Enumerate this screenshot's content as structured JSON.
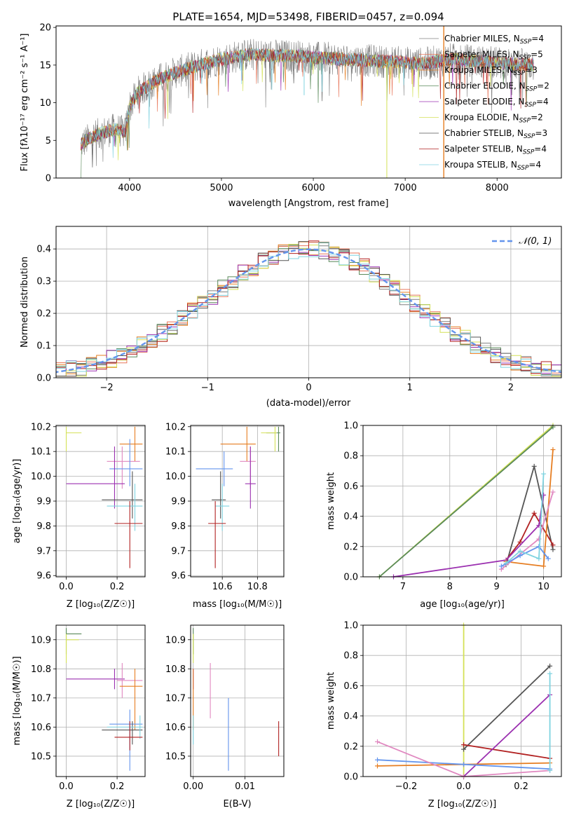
{
  "colors": {
    "chabrier_miles": "#808080",
    "salpeter_miles": "#e8765a",
    "kroupa_miles": "#e67e22",
    "chabrier_elodie": "#5a8a5a",
    "salpeter_elodie": "#9b30b0",
    "kroupa_elodie": "#d4e157",
    "chabrier_stelib": "#555555",
    "salpeter_stelib": "#b22222",
    "kroupa_stelib": "#7fd3e0",
    "normal_curve": "#6495ed",
    "pink": "#e088c0"
  },
  "chart_data": [
    {
      "id": "spectrum",
      "type": "line",
      "title": "PLATE=1654, MJD=53498, FIBERID=0457, z=0.094",
      "xlabel": "wavelength [Angstrom, rest frame]",
      "ylabel": "Flux [fλ10⁻¹⁷ erg cm⁻² s⁻¹ A⁻¹]",
      "xlim": [
        3200,
        8700
      ],
      "ylim": [
        0,
        20.2
      ],
      "xticks": [
        "4000",
        "5000",
        "6000",
        "7000",
        "8000"
      ],
      "yticks": [
        "0",
        "5",
        "10",
        "15",
        "20"
      ],
      "legend_position": "right",
      "series": [
        {
          "name": "Chabrier MILES, N",
          "ssp": "4",
          "color_key": "chabrier_miles"
        },
        {
          "name": "Salpeter MILES, N",
          "ssp": "5",
          "color_key": "salpeter_miles"
        },
        {
          "name": "Kroupa MILES, N",
          "ssp": "3",
          "color_key": "kroupa_miles"
        },
        {
          "name": "Chabrier ELODIE, N",
          "ssp": "2",
          "color_key": "chabrier_elodie"
        },
        {
          "name": "Salpeter ELODIE, N",
          "ssp": "4",
          "color_key": "salpeter_elodie"
        },
        {
          "name": "Kroupa ELODIE, N",
          "ssp": "2",
          "color_key": "kroupa_elodie"
        },
        {
          "name": "Chabrier STELIB, N",
          "ssp": "3",
          "color_key": "chabrier_stelib"
        },
        {
          "name": "Salpeter STELIB, N",
          "ssp": "4",
          "color_key": "salpeter_stelib"
        },
        {
          "name": "Kroupa STELIB, N",
          "ssp": "4",
          "color_key": "kroupa_stelib"
        }
      ],
      "continuum_x": [
        3470,
        3600,
        3700,
        3850,
        3950,
        4000,
        4100,
        4300,
        4500,
        4700,
        4900,
        5100,
        5300,
        5500,
        5800,
        6000,
        6300,
        6600,
        6900,
        7200,
        7500,
        7800,
        8100,
        8400
      ],
      "continuum_y": [
        4.5,
        5.5,
        6.0,
        6.5,
        6.0,
        9.5,
        11.5,
        13.0,
        14.0,
        14.8,
        15.5,
        16.0,
        16.4,
        16.3,
        16.2,
        16.0,
        15.8,
        15.6,
        15.4,
        15.2,
        15.8,
        15.5,
        15.2,
        15.0
      ]
    },
    {
      "id": "histogram",
      "type": "bar",
      "xlabel": "(data-model)/error",
      "ylabel": "Normed distribution",
      "xlim": [
        -2.5,
        2.5
      ],
      "ylim": [
        0,
        0.47
      ],
      "xticks": [
        "−2",
        "−1",
        "0",
        "1",
        "2"
      ],
      "yticks": [
        "0.0",
        "0.1",
        "0.2",
        "0.3",
        "0.4"
      ],
      "legend": "𝒩(0, 1)",
      "bin_width": 0.1,
      "bin_start": -2.5
    },
    {
      "id": "age_vs_Z",
      "type": "scatter",
      "xlabel": "Z [log₁₀(Z/Z☉)]",
      "ylabel": "age  [log₁₀(age/yr)]",
      "xlim": [
        -0.04,
        0.31
      ],
      "ylim": [
        9.595,
        10.205
      ],
      "xticks": [
        "0.0",
        "0.2"
      ],
      "yticks": [
        "9.6",
        "9.7",
        "9.8",
        "9.9",
        "10.0",
        "10.1",
        "10.2"
      ],
      "points": [
        {
          "c": "kroupa_elodie",
          "x": 0.0,
          "y": 10.175,
          "xe": [
            0.0,
            0.06
          ],
          "ye": [
            10.1,
            10.2
          ]
        },
        {
          "c": "kroupa_miles",
          "x": 0.27,
          "y": 10.13,
          "xe": [
            0.21,
            0.3
          ],
          "ye": [
            10.06,
            10.2
          ]
        },
        {
          "c": "pink",
          "x": 0.22,
          "y": 10.06,
          "xe": [
            0.16,
            0.29
          ],
          "ye": [
            9.95,
            10.12
          ]
        },
        {
          "c": "normal_curve",
          "x": 0.25,
          "y": 10.03,
          "xe": [
            0.17,
            0.3
          ],
          "ye": [
            9.96,
            10.15
          ]
        },
        {
          "c": "salpeter_elodie",
          "x": 0.19,
          "y": 9.97,
          "xe": [
            0.0,
            0.23
          ],
          "ye": [
            9.87,
            10.12
          ]
        },
        {
          "c": "chabrier_stelib",
          "x": 0.26,
          "y": 9.905,
          "xe": [
            0.14,
            0.3
          ],
          "ye": [
            9.83,
            10.02
          ]
        },
        {
          "c": "kroupa_stelib",
          "x": 0.27,
          "y": 9.88,
          "xe": [
            0.16,
            0.3
          ],
          "ye": [
            9.78,
            9.97
          ]
        },
        {
          "c": "salpeter_stelib",
          "x": 0.25,
          "y": 9.81,
          "xe": [
            0.19,
            0.3
          ],
          "ye": [
            9.63,
            9.9
          ]
        }
      ]
    },
    {
      "id": "age_vs_mass",
      "type": "scatter",
      "xlabel": "mass [log₁₀(M/M☉)]",
      "ylabel": "",
      "xlim": [
        10.42,
        10.95
      ],
      "ylim": [
        9.595,
        10.205
      ],
      "xticks": [
        "10.6",
        "10.8"
      ],
      "yticks": [
        "9.6",
        "9.7",
        "9.8",
        "9.9",
        "10.0",
        "10.1",
        "10.2"
      ],
      "points": [
        {
          "c": "chabrier_elodie",
          "x": 10.92,
          "y": 10.175,
          "xe": [
            10.85,
            10.93
          ],
          "ye": [
            10.1,
            10.2
          ]
        },
        {
          "c": "kroupa_elodie",
          "x": 10.9,
          "y": 10.175,
          "xe": [
            10.82,
            10.91
          ],
          "ye": [
            10.1,
            10.2
          ]
        },
        {
          "c": "kroupa_miles",
          "x": 10.74,
          "y": 10.13,
          "xe": [
            10.59,
            10.79
          ],
          "ye": [
            10.06,
            10.2
          ]
        },
        {
          "c": "pink",
          "x": 10.76,
          "y": 10.06,
          "xe": [
            10.7,
            10.79
          ],
          "ye": [
            9.95,
            10.12
          ]
        },
        {
          "c": "normal_curve",
          "x": 10.61,
          "y": 10.03,
          "xe": [
            10.45,
            10.66
          ],
          "ye": [
            9.96,
            10.1
          ]
        },
        {
          "c": "salpeter_elodie",
          "x": 10.76,
          "y": 9.97,
          "xe": [
            10.73,
            10.79
          ],
          "ye": [
            9.87,
            10.12
          ]
        },
        {
          "c": "chabrier_stelib",
          "x": 10.59,
          "y": 9.905,
          "xe": [
            10.54,
            10.62
          ],
          "ye": [
            9.83,
            10.02
          ]
        },
        {
          "c": "kroupa_stelib",
          "x": 10.6,
          "y": 9.88,
          "xe": [
            10.56,
            10.64
          ],
          "ye": [
            9.78,
            9.97
          ]
        },
        {
          "c": "salpeter_stelib",
          "x": 10.56,
          "y": 9.81,
          "xe": [
            10.52,
            10.62
          ],
          "ye": [
            9.63,
            9.9
          ]
        }
      ]
    },
    {
      "id": "weight_vs_age",
      "type": "line",
      "xlabel": "age  [log₁₀(age/yr)]",
      "ylabel": "mass weight",
      "xlim": [
        6.15,
        10.38
      ],
      "ylim": [
        0,
        1
      ],
      "xticks": [
        "7",
        "8",
        "9",
        "10"
      ],
      "yticks": [
        "0.0",
        "0.2",
        "0.4",
        "0.6",
        "0.8",
        "1.0"
      ],
      "series": [
        {
          "c": "kroupa_elodie",
          "x": [
            6.5,
            10.2
          ],
          "y": [
            0.0,
            1.0
          ]
        },
        {
          "c": "chabrier_elodie",
          "x": [
            6.5,
            10.2
          ],
          "y": [
            0.0,
            0.99
          ]
        },
        {
          "c": "chabrier_stelib",
          "x": [
            9.2,
            9.8,
            10.2
          ],
          "y": [
            0.08,
            0.73,
            0.18
          ]
        },
        {
          "c": "salpeter_stelib",
          "x": [
            9.2,
            9.5,
            9.8,
            10.2
          ],
          "y": [
            0.11,
            0.23,
            0.42,
            0.21
          ]
        },
        {
          "c": "salpeter_elodie",
          "x": [
            6.8,
            9.2,
            9.9,
            10.0
          ],
          "y": [
            0.0,
            0.11,
            0.34,
            0.54
          ]
        },
        {
          "c": "kroupa_miles",
          "x": [
            9.2,
            10.0,
            10.2
          ],
          "y": [
            0.1,
            0.07,
            0.84
          ]
        },
        {
          "c": "pink",
          "x": [
            9.1,
            9.9,
            10.2
          ],
          "y": [
            0.05,
            0.25,
            0.56
          ]
        },
        {
          "c": "normal_curve",
          "x": [
            9.1,
            9.5,
            9.9,
            10.1
          ],
          "y": [
            0.07,
            0.14,
            0.2,
            0.12
          ]
        },
        {
          "c": "kroupa_stelib",
          "x": [
            9.2,
            9.5,
            9.9,
            10.0
          ],
          "y": [
            0.09,
            0.17,
            0.12,
            0.68
          ]
        }
      ]
    },
    {
      "id": "mass_vs_Z",
      "type": "scatter",
      "xlabel": "Z [log₁₀(Z/Z☉)]",
      "ylabel": "mass [log₁₀(M/M☉)]",
      "xlim": [
        -0.04,
        0.31
      ],
      "ylim": [
        10.43,
        10.95
      ],
      "xticks": [
        "0.0",
        "0.2"
      ],
      "yticks": [
        "10.5",
        "10.6",
        "10.7",
        "10.8",
        "10.9"
      ],
      "points": [
        {
          "c": "chabrier_elodie",
          "x": 0.0,
          "y": 10.92,
          "xe": [
            0.0,
            0.06
          ],
          "ye": [
            10.85,
            10.94
          ]
        },
        {
          "c": "kroupa_elodie",
          "x": 0.0,
          "y": 10.9,
          "xe": [
            0.0,
            0.05
          ],
          "ye": [
            10.82,
            10.92
          ]
        },
        {
          "c": "salpeter_elodie",
          "x": 0.19,
          "y": 10.765,
          "xe": [
            0.0,
            0.23
          ],
          "ye": [
            10.73,
            10.8
          ]
        },
        {
          "c": "pink",
          "x": 0.22,
          "y": 10.76,
          "xe": [
            0.2,
            0.3
          ],
          "ye": [
            10.7,
            10.82
          ]
        },
        {
          "c": "kroupa_miles",
          "x": 0.27,
          "y": 10.74,
          "xe": [
            0.21,
            0.3
          ],
          "ye": [
            10.59,
            10.8
          ]
        },
        {
          "c": "normal_curve",
          "x": 0.25,
          "y": 10.61,
          "xe": [
            0.17,
            0.3
          ],
          "ye": [
            10.45,
            10.66
          ]
        },
        {
          "c": "chabrier_stelib",
          "x": 0.26,
          "y": 10.59,
          "xe": [
            0.14,
            0.3
          ],
          "ye": [
            10.54,
            10.62
          ]
        },
        {
          "c": "kroupa_stelib",
          "x": 0.29,
          "y": 10.6,
          "xe": [
            0.16,
            0.3
          ],
          "ye": [
            10.56,
            10.64
          ]
        },
        {
          "c": "salpeter_stelib",
          "x": 0.25,
          "y": 10.565,
          "xe": [
            0.19,
            0.3
          ],
          "ye": [
            10.52,
            10.62
          ]
        }
      ]
    },
    {
      "id": "mass_vs_ebv",
      "type": "scatter",
      "xlabel": "E(B-V)",
      "ylabel": "",
      "xlim": [
        -0.0005,
        0.0175
      ],
      "ylim": [
        10.43,
        10.95
      ],
      "xticks": [
        "0.00",
        "0.01"
      ],
      "yticks": [
        "10.5",
        "10.6",
        "10.7",
        "10.8",
        "10.9"
      ],
      "points": [
        {
          "c": "chabrier_elodie",
          "x": 0.0,
          "y": 10.92,
          "xe": [
            0.0,
            0.0
          ],
          "ye": [
            10.85,
            10.94
          ]
        },
        {
          "c": "kroupa_elodie",
          "x": 0.0,
          "y": 10.9,
          "xe": [
            0.0,
            0.0
          ],
          "ye": [
            10.82,
            10.92
          ]
        },
        {
          "c": "salpeter_elodie",
          "x": 0.0,
          "y": 10.765,
          "xe": [
            0.0,
            0.0
          ],
          "ye": [
            10.73,
            10.8
          ]
        },
        {
          "c": "kroupa_miles",
          "x": 0.0,
          "y": 10.74,
          "xe": [
            0.0,
            0.0
          ],
          "ye": [
            10.59,
            10.8
          ]
        },
        {
          "c": "kroupa_stelib",
          "x": 0.0,
          "y": 10.6,
          "xe": [
            0.0,
            0.0
          ],
          "ye": [
            10.54,
            10.64
          ]
        },
        {
          "c": "pink",
          "x": 0.0033,
          "y": 10.76,
          "xe": [
            0.0033,
            0.0033
          ],
          "ye": [
            10.63,
            10.82
          ]
        },
        {
          "c": "normal_curve",
          "x": 0.0068,
          "y": 10.61,
          "xe": [
            0.0068,
            0.0068
          ],
          "ye": [
            10.45,
            10.7
          ]
        },
        {
          "c": "salpeter_stelib",
          "x": 0.0165,
          "y": 10.565,
          "xe": [
            0.0165,
            0.0165
          ],
          "ye": [
            10.5,
            10.62
          ]
        }
      ]
    },
    {
      "id": "weight_vs_Z",
      "type": "line",
      "xlabel": "Z [log₁₀(Z/Z☉)]",
      "ylabel": "mass weight",
      "xlim": [
        -0.35,
        0.34
      ],
      "ylim": [
        0,
        1
      ],
      "xticks": [
        "−0.2",
        "0.0",
        "0.2"
      ],
      "yticks": [
        "0.0",
        "0.2",
        "0.4",
        "0.6",
        "0.8",
        "1.0"
      ],
      "series": [
        {
          "c": "kroupa_elodie",
          "x": [
            0.0,
            0.0
          ],
          "y": [
            0.0,
            1.0
          ]
        },
        {
          "c": "chabrier_stelib",
          "x": [
            0.0,
            0.3
          ],
          "y": [
            0.18,
            0.73
          ]
        },
        {
          "c": "salpeter_stelib",
          "x": [
            0.0,
            0.3
          ],
          "y": [
            0.21,
            0.12
          ]
        },
        {
          "c": "salpeter_elodie",
          "x": [
            0.0,
            0.3
          ],
          "y": [
            0.0,
            0.54
          ]
        },
        {
          "c": "kroupa_miles",
          "x": [
            -0.3,
            0.0,
            0.3
          ],
          "y": [
            0.07,
            0.08,
            0.09
          ]
        },
        {
          "c": "normal_curve",
          "x": [
            -0.3,
            0.0,
            0.3
          ],
          "y": [
            0.11,
            0.08,
            0.05
          ]
        },
        {
          "c": "pink",
          "x": [
            -0.3,
            0.0,
            0.3
          ],
          "y": [
            0.23,
            0.0,
            0.04
          ]
        },
        {
          "c": "kroupa_stelib",
          "x": [
            0.3,
            0.3
          ],
          "y": [
            0.04,
            0.68
          ]
        }
      ]
    }
  ]
}
